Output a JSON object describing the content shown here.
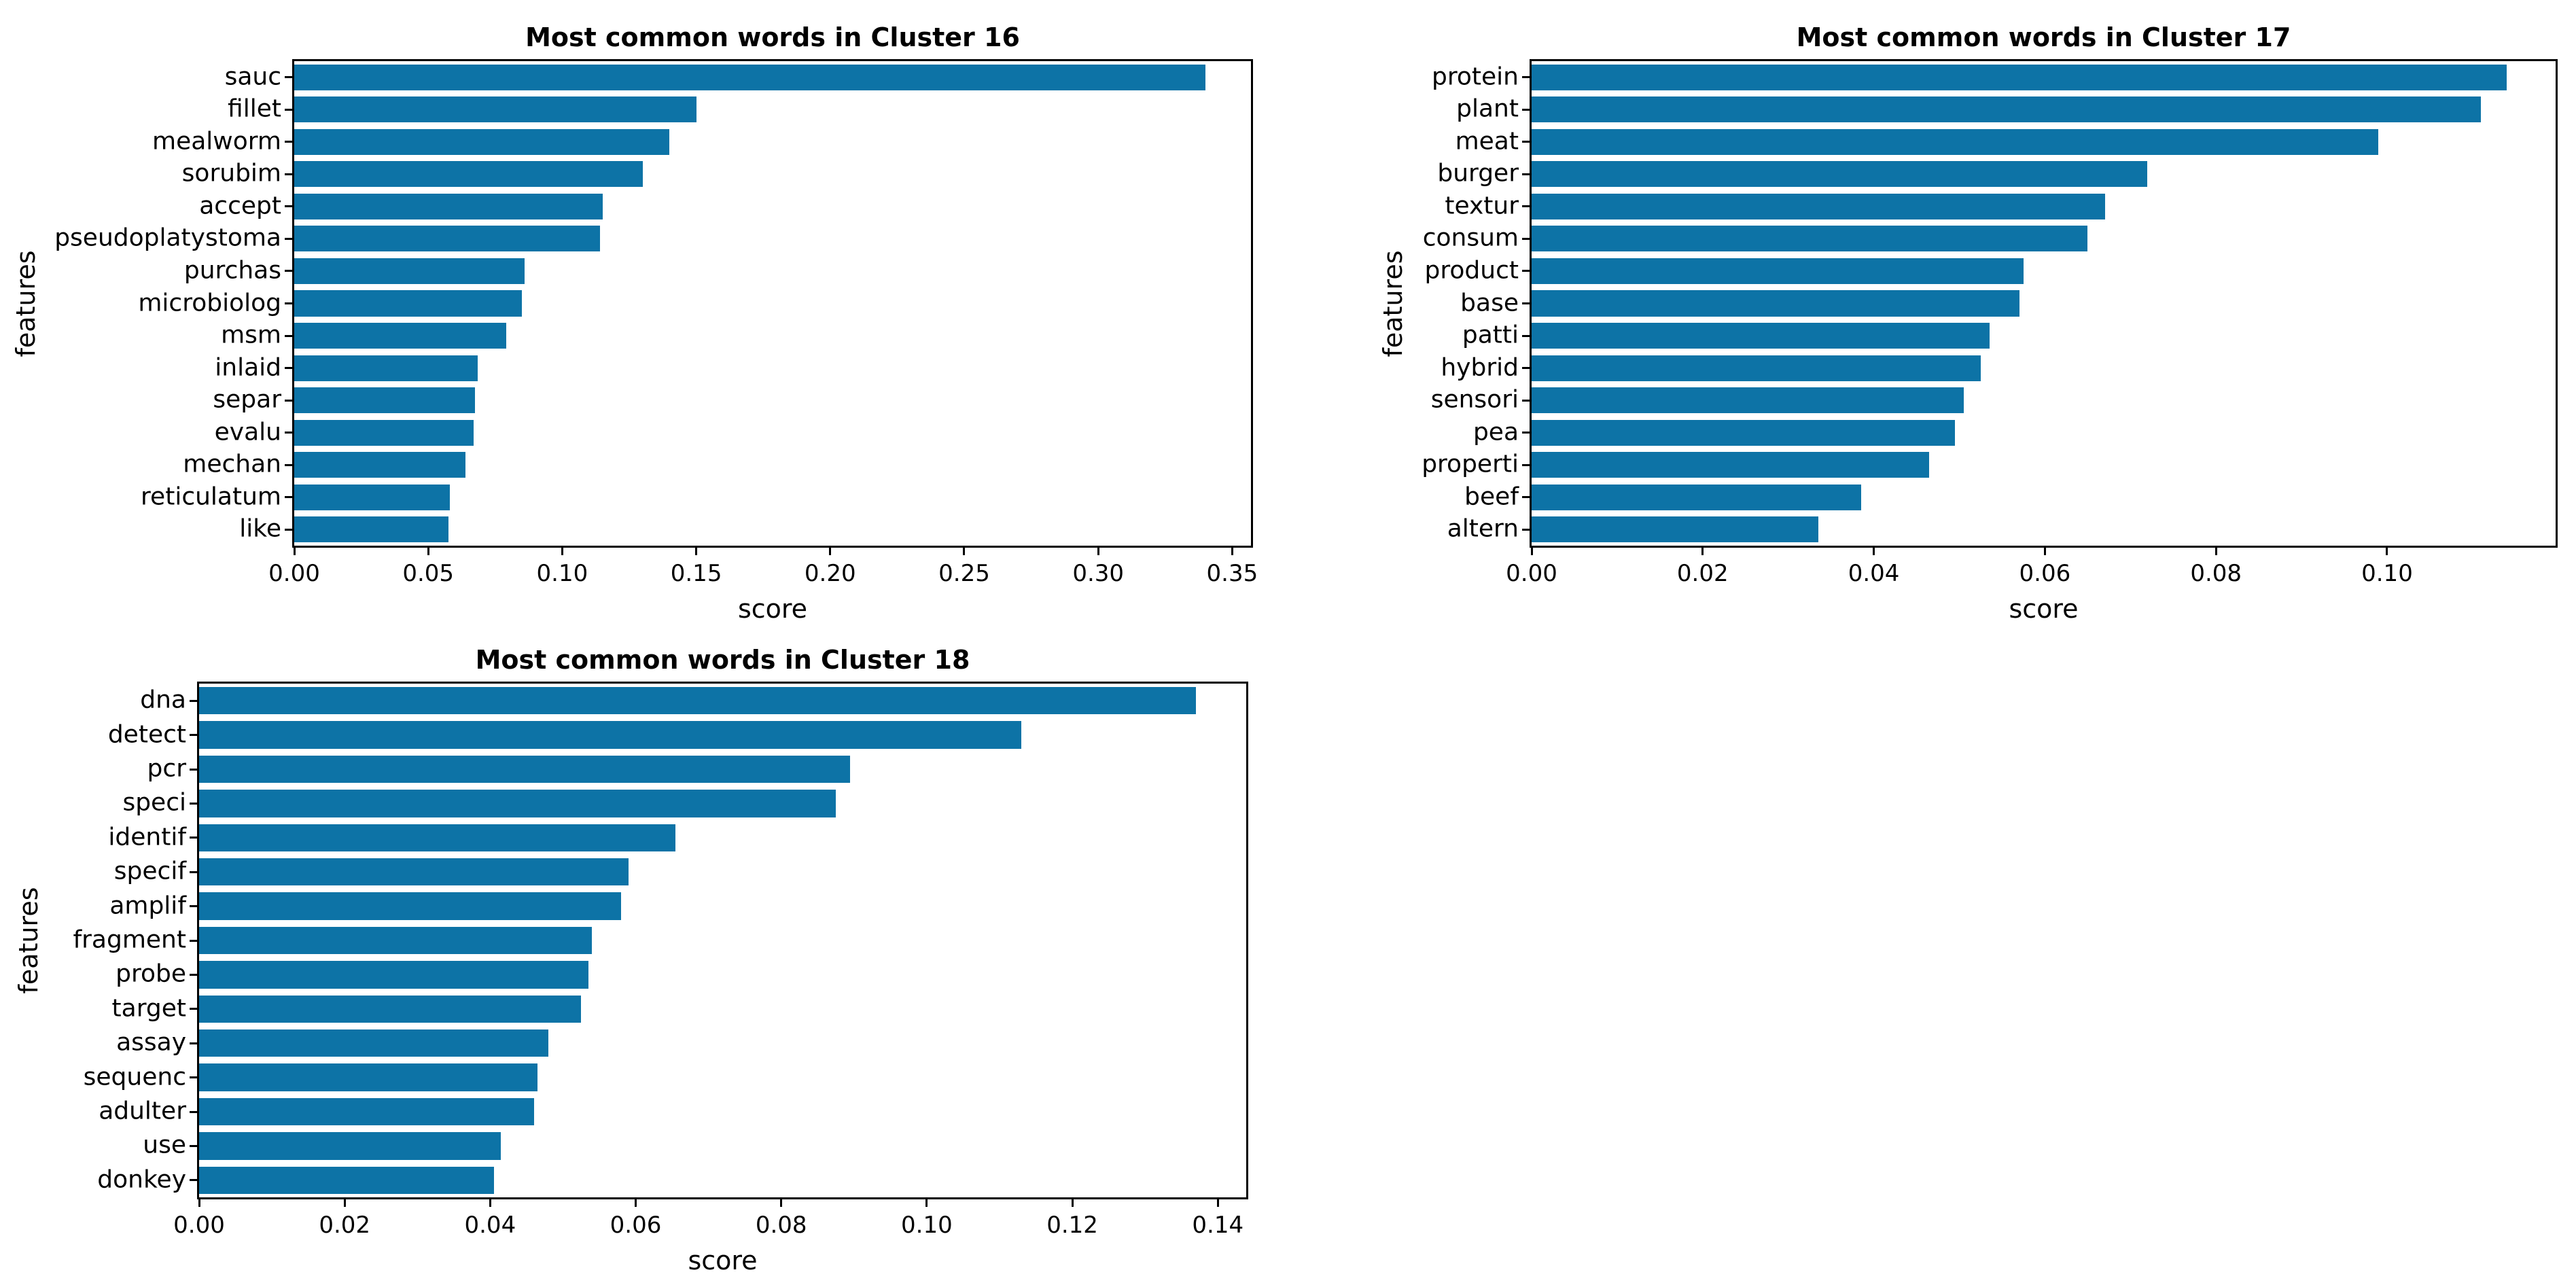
{
  "figure": {
    "background": "#ffffff",
    "text_color": "#000000",
    "bar_color": "#0d73a6"
  },
  "chart_data": [
    {
      "type": "bar",
      "orientation": "horizontal",
      "title": "Most common words in Cluster 16",
      "xlabel": "score",
      "ylabel": "features",
      "categories": [
        "sauc",
        "fillet",
        "mealworm",
        "sorubim",
        "accept",
        "pseudoplatystoma",
        "purchas",
        "microbiolog",
        "msm",
        "inlaid",
        "separ",
        "evalu",
        "mechan",
        "reticulatum",
        "like"
      ],
      "values": [
        0.34,
        0.15,
        0.14,
        0.13,
        0.115,
        0.114,
        0.086,
        0.085,
        0.079,
        0.0685,
        0.0675,
        0.067,
        0.064,
        0.058,
        0.0575
      ],
      "xlim": [
        0,
        0.357
      ],
      "xticks": [
        "0.00",
        "0.05",
        "0.10",
        "0.15",
        "0.20",
        "0.25",
        "0.30",
        "0.35"
      ],
      "grid": false,
      "legend": false,
      "bar_color": "#0d73a6"
    },
    {
      "type": "bar",
      "orientation": "horizontal",
      "title": "Most common words in Cluster 17",
      "xlabel": "score",
      "ylabel": "features",
      "categories": [
        "protein",
        "plant",
        "meat",
        "burger",
        "textur",
        "consum",
        "product",
        "base",
        "patti",
        "hybrid",
        "sensori",
        "pea",
        "properti",
        "beef",
        "altern"
      ],
      "values": [
        0.114,
        0.111,
        0.099,
        0.072,
        0.067,
        0.065,
        0.0575,
        0.057,
        0.0535,
        0.0525,
        0.0505,
        0.0495,
        0.0465,
        0.0385,
        0.0335
      ],
      "xlim": [
        0,
        0.1197
      ],
      "xticks": [
        "0.00",
        "0.02",
        "0.04",
        "0.06",
        "0.08",
        "0.10"
      ],
      "grid": false,
      "legend": false,
      "bar_color": "#0d73a6"
    },
    {
      "type": "bar",
      "orientation": "horizontal",
      "title": "Most common words in Cluster 18",
      "xlabel": "score",
      "ylabel": "features",
      "categories": [
        "dna",
        "detect",
        "pcr",
        "speci",
        "identif",
        "specif",
        "amplif",
        "fragment",
        "probe",
        "target",
        "assay",
        "sequenc",
        "adulter",
        "use",
        "donkey"
      ],
      "values": [
        0.137,
        0.113,
        0.0895,
        0.0875,
        0.0655,
        0.059,
        0.058,
        0.054,
        0.0535,
        0.0525,
        0.048,
        0.0465,
        0.046,
        0.0415,
        0.0405
      ],
      "xlim": [
        0,
        0.1439
      ],
      "xticks": [
        "0.00",
        "0.02",
        "0.04",
        "0.06",
        "0.08",
        "0.10",
        "0.12",
        "0.14"
      ],
      "grid": false,
      "legend": false,
      "bar_color": "#0d73a6"
    }
  ]
}
